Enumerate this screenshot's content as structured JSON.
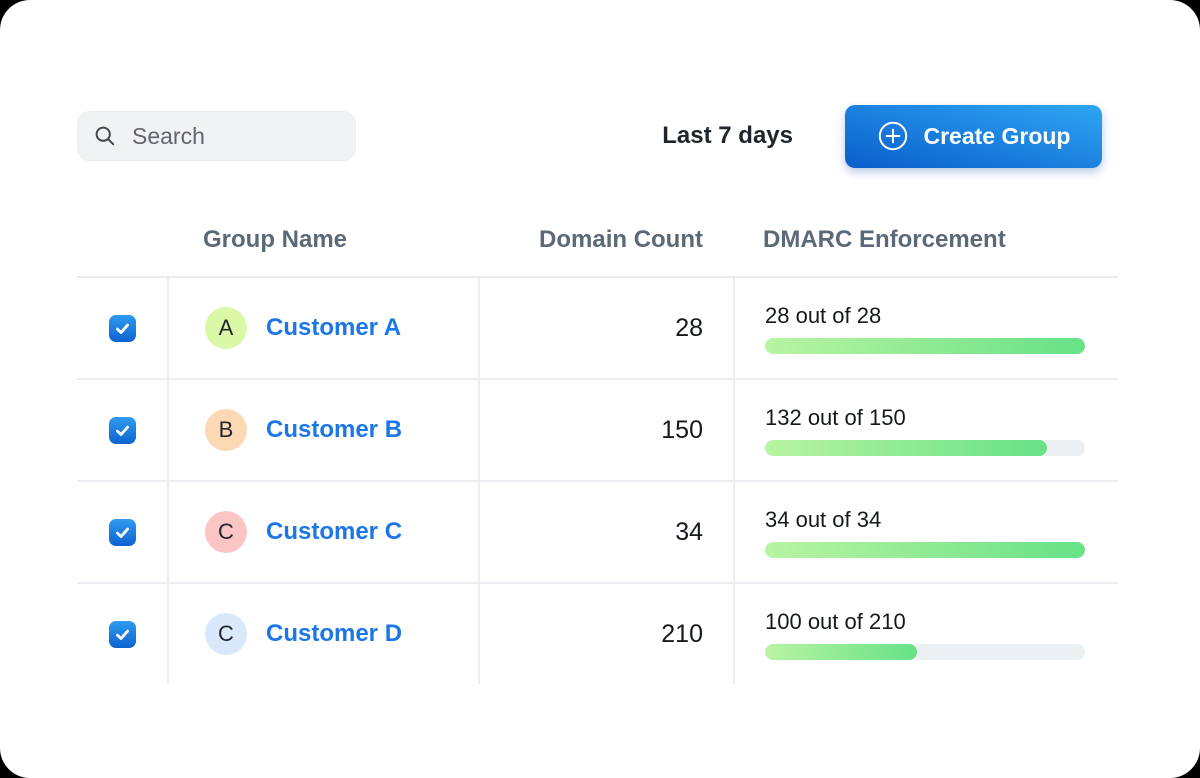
{
  "toolbar": {
    "search": {
      "placeholder": "Search"
    },
    "date_range_label": "Last 7 days",
    "create_group_label": "Create Group"
  },
  "table": {
    "columns": [
      {
        "key": "select",
        "label": ""
      },
      {
        "key": "group_name",
        "label": "Group Name"
      },
      {
        "key": "domain_count",
        "label": "Domain Count"
      },
      {
        "key": "dmarc",
        "label": "DMARC Enforcement"
      }
    ],
    "rows": [
      {
        "selected": true,
        "avatar_letter": "A",
        "avatar_color": "#daf8a5",
        "group_name": "Customer A",
        "domain_count": "28",
        "dmarc_label": "28 out of 28",
        "dmarc_percent": 100
      },
      {
        "selected": true,
        "avatar_letter": "B",
        "avatar_color": "#fdd8b5",
        "group_name": "Customer B",
        "domain_count": "150",
        "dmarc_label": "132 out of 150",
        "dmarc_percent": 88
      },
      {
        "selected": true,
        "avatar_letter": "C",
        "avatar_color": "#fbc5c5",
        "group_name": "Customer C",
        "domain_count": "34",
        "dmarc_label": "34 out of 34",
        "dmarc_percent": 100
      },
      {
        "selected": true,
        "avatar_letter": "C",
        "avatar_color": "#d9e9fb",
        "group_name": "Customer D",
        "domain_count": "210",
        "dmarc_label": "100 out of 210",
        "dmarc_percent": 47.6
      }
    ]
  },
  "colors": {
    "button-gradient-start": "#0a5ecb",
    "button-gradient-end": "#2fa6f3",
    "checkbox-gradient-start": "#2f9bf0",
    "checkbox-gradient-end": "#0e63cf",
    "progress-gradient-start": "#b9f4a2",
    "progress-gradient-end": "#67e187",
    "progress-track": "#edf0f3",
    "link-blue": "#1b76e8",
    "header-text": "#5c6976"
  }
}
